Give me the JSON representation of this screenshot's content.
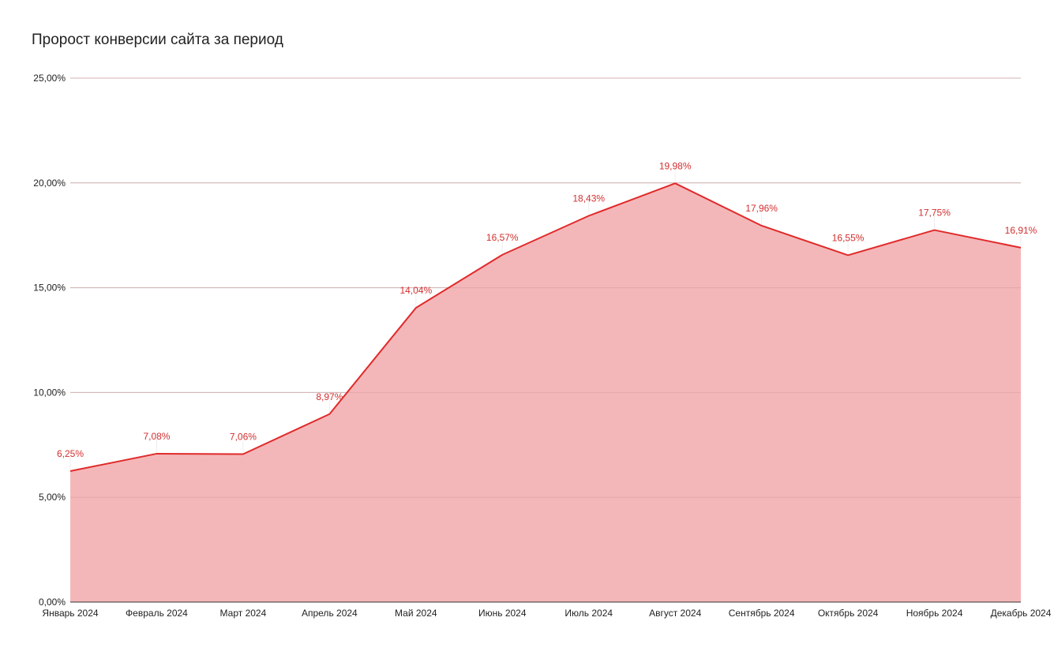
{
  "chart_data": {
    "type": "area",
    "title": "Пророст конверсии сайта за период",
    "xlabel": "",
    "ylabel": "",
    "ylim": [
      0,
      25
    ],
    "y_ticks": [
      0,
      5,
      10,
      15,
      20,
      25
    ],
    "y_tick_labels": [
      "0,00%",
      "5,00%",
      "10,00%",
      "15,00%",
      "20,00%",
      "25,00%"
    ],
    "grid": true,
    "legend": "none",
    "categories": [
      "Январь 2024",
      "Февраль 2024",
      "Март 2024",
      "Апрель 2024",
      "Май 2024",
      "Июнь 2024",
      "Июль 2024",
      "Август 2024",
      "Сентябрь 2024",
      "Октябрь 2024",
      "Ноябрь 2024",
      "Декабрь 2024"
    ],
    "series": [
      {
        "values": [
          6.25,
          7.08,
          7.06,
          8.97,
          14.04,
          16.57,
          18.43,
          19.98,
          17.96,
          16.55,
          17.75,
          16.91
        ],
        "data_labels": [
          "6,25%",
          "7,08%",
          "7,06%",
          "8,97%",
          "14,04%",
          "16,57%",
          "18,43%",
          "19,98%",
          "17,96%",
          "16,55%",
          "17,75%",
          "16,91%"
        ],
        "line_color": "#e02a2a",
        "fill_color": "#f4b7b9",
        "label_color": "#d32f2f"
      }
    ],
    "grid_color": "#cccccc",
    "axis_color": "#333333"
  }
}
